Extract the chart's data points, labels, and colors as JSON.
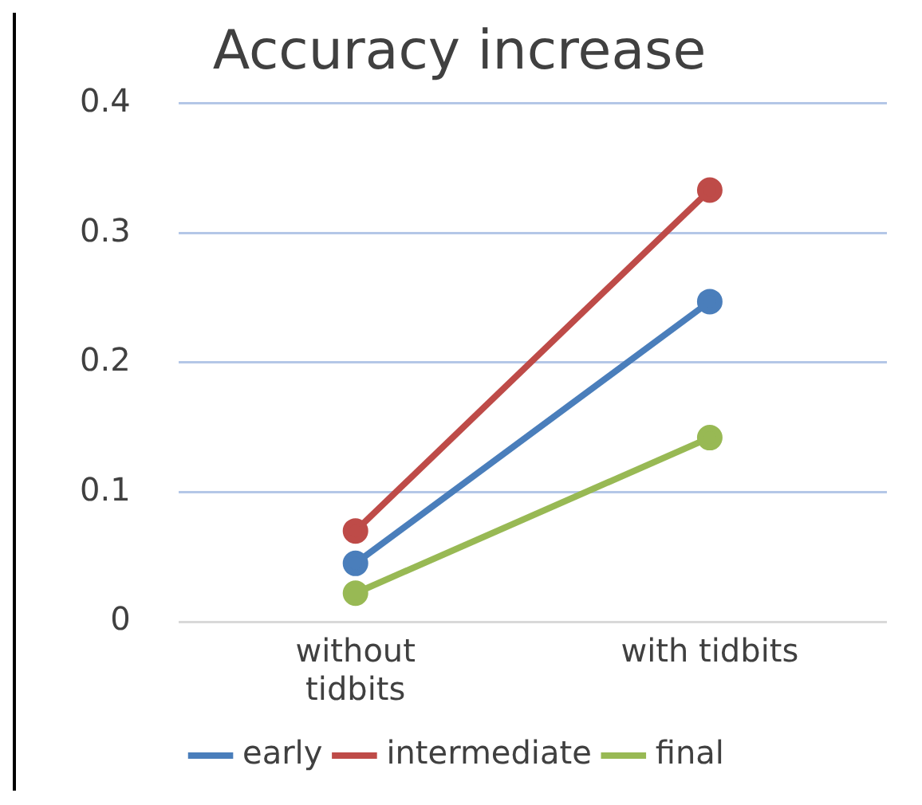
{
  "chart_data": {
    "type": "line",
    "title": "Accuracy increase",
    "categories": [
      "without tidbits",
      "with tidbits"
    ],
    "series": [
      {
        "name": "early",
        "color": "#4a7ebb",
        "values": [
          0.045,
          0.247
        ]
      },
      {
        "name": "intermediate",
        "color": "#be4b48",
        "values": [
          0.07,
          0.333
        ]
      },
      {
        "name": "final",
        "color": "#98b954",
        "values": [
          0.022,
          0.142
        ]
      }
    ],
    "ylim": [
      0,
      0.4
    ],
    "yticks": [
      0,
      0.1,
      0.2,
      0.3,
      0.4
    ],
    "grid": "y",
    "legend": "bottom",
    "marker": "circle",
    "line_style": "solid"
  }
}
